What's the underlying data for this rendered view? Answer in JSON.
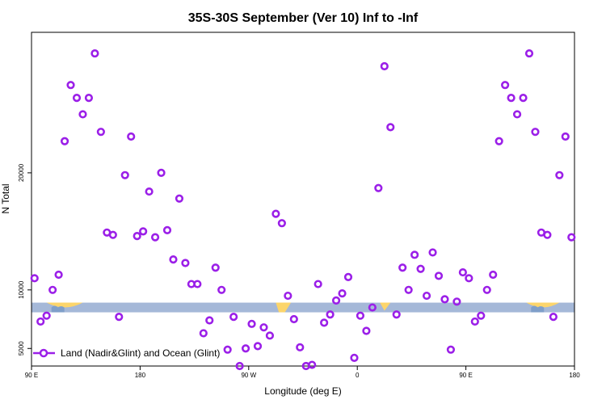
{
  "chart_data": {
    "type": "scatter",
    "title": "35S-30S September (Ver 10)   Inf to -Inf",
    "xlabel": "Longitude (deg E)",
    "ylabel": "N Total",
    "xlim": [
      90,
      450
    ],
    "ylim": [
      3500,
      32000
    ],
    "x_ticks": [
      {
        "value": 90,
        "label": "90 E"
      },
      {
        "value": 162,
        "label": "180"
      },
      {
        "value": 234,
        "label": "90 W"
      },
      {
        "value": 306,
        "label": "0"
      },
      {
        "value": 378,
        "label": "90 E"
      },
      {
        "value": 450,
        "label": "180"
      }
    ],
    "y_ticks": [
      {
        "value": 5000,
        "label": "5000"
      },
      {
        "value": 10000,
        "label": "10000"
      },
      {
        "value": 20000,
        "label": "20000"
      }
    ],
    "grid": false,
    "legend_position": "bottom-left",
    "series": [
      {
        "name": "Land (Nadir&Glint) and Ocean (Glint)",
        "color": "#9b1fe8",
        "marker": "open-circle",
        "points": [
          [
            92,
            11000
          ],
          [
            96,
            7300
          ],
          [
            100,
            7800
          ],
          [
            104,
            10000
          ],
          [
            108,
            11300
          ],
          [
            112,
            22700
          ],
          [
            116,
            27500
          ],
          [
            120,
            26400
          ],
          [
            124,
            25000
          ],
          [
            128,
            26400
          ],
          [
            132,
            30200
          ],
          [
            136,
            23500
          ],
          [
            140,
            14900
          ],
          [
            144,
            14700
          ],
          [
            148,
            7700
          ],
          [
            152,
            19800
          ],
          [
            156,
            23100
          ],
          [
            160,
            14600
          ],
          [
            164,
            15000
          ],
          [
            168,
            18400
          ],
          [
            172,
            14500
          ],
          [
            176,
            20000
          ],
          [
            180,
            15100
          ],
          [
            184,
            12600
          ],
          [
            188,
            17800
          ],
          [
            192,
            12300
          ],
          [
            196,
            10500
          ],
          [
            200,
            10500
          ],
          [
            204,
            6300
          ],
          [
            208,
            7400
          ],
          [
            212,
            11900
          ],
          [
            216,
            10000
          ],
          [
            220,
            4900
          ],
          [
            224,
            7700
          ],
          [
            228,
            3500
          ],
          [
            232,
            5000
          ],
          [
            236,
            7100
          ],
          [
            240,
            5200
          ],
          [
            244,
            6800
          ],
          [
            248,
            6100
          ],
          [
            252,
            16500
          ],
          [
            256,
            15700
          ],
          [
            260,
            9500
          ],
          [
            264,
            7500
          ],
          [
            268,
            5100
          ],
          [
            272,
            3500
          ],
          [
            276,
            3600
          ],
          [
            280,
            10500
          ],
          [
            284,
            7200
          ],
          [
            288,
            7900
          ],
          [
            292,
            9100
          ],
          [
            296,
            9700
          ],
          [
            300,
            11100
          ],
          [
            304,
            4200
          ],
          [
            308,
            7800
          ],
          [
            312,
            6500
          ],
          [
            316,
            8500
          ],
          [
            320,
            18700
          ],
          [
            324,
            29100
          ],
          [
            328,
            23900
          ],
          [
            332,
            7900
          ],
          [
            336,
            11900
          ],
          [
            340,
            10000
          ],
          [
            344,
            13000
          ],
          [
            348,
            11800
          ],
          [
            352,
            9500
          ],
          [
            356,
            13200
          ],
          [
            360,
            11200
          ],
          [
            364,
            9200
          ],
          [
            368,
            4900
          ],
          [
            372,
            9000
          ],
          [
            376,
            11500
          ],
          [
            380,
            11000
          ],
          [
            384,
            7300
          ],
          [
            388,
            7800
          ],
          [
            392,
            10000
          ],
          [
            396,
            11300
          ],
          [
            400,
            22700
          ],
          [
            404,
            27500
          ],
          [
            408,
            26400
          ],
          [
            412,
            25000
          ],
          [
            416,
            26400
          ],
          [
            420,
            30200
          ],
          [
            424,
            23500
          ],
          [
            428,
            14900
          ],
          [
            432,
            14700
          ],
          [
            436,
            7700
          ],
          [
            440,
            19800
          ],
          [
            444,
            23100
          ],
          [
            448,
            14500
          ]
        ]
      }
    ],
    "map_strip": {
      "y_value": 8500,
      "ocean_color": "#a5b8d8",
      "land_color": "#fcd56b",
      "land_color_2": "#7f9fc9"
    }
  }
}
